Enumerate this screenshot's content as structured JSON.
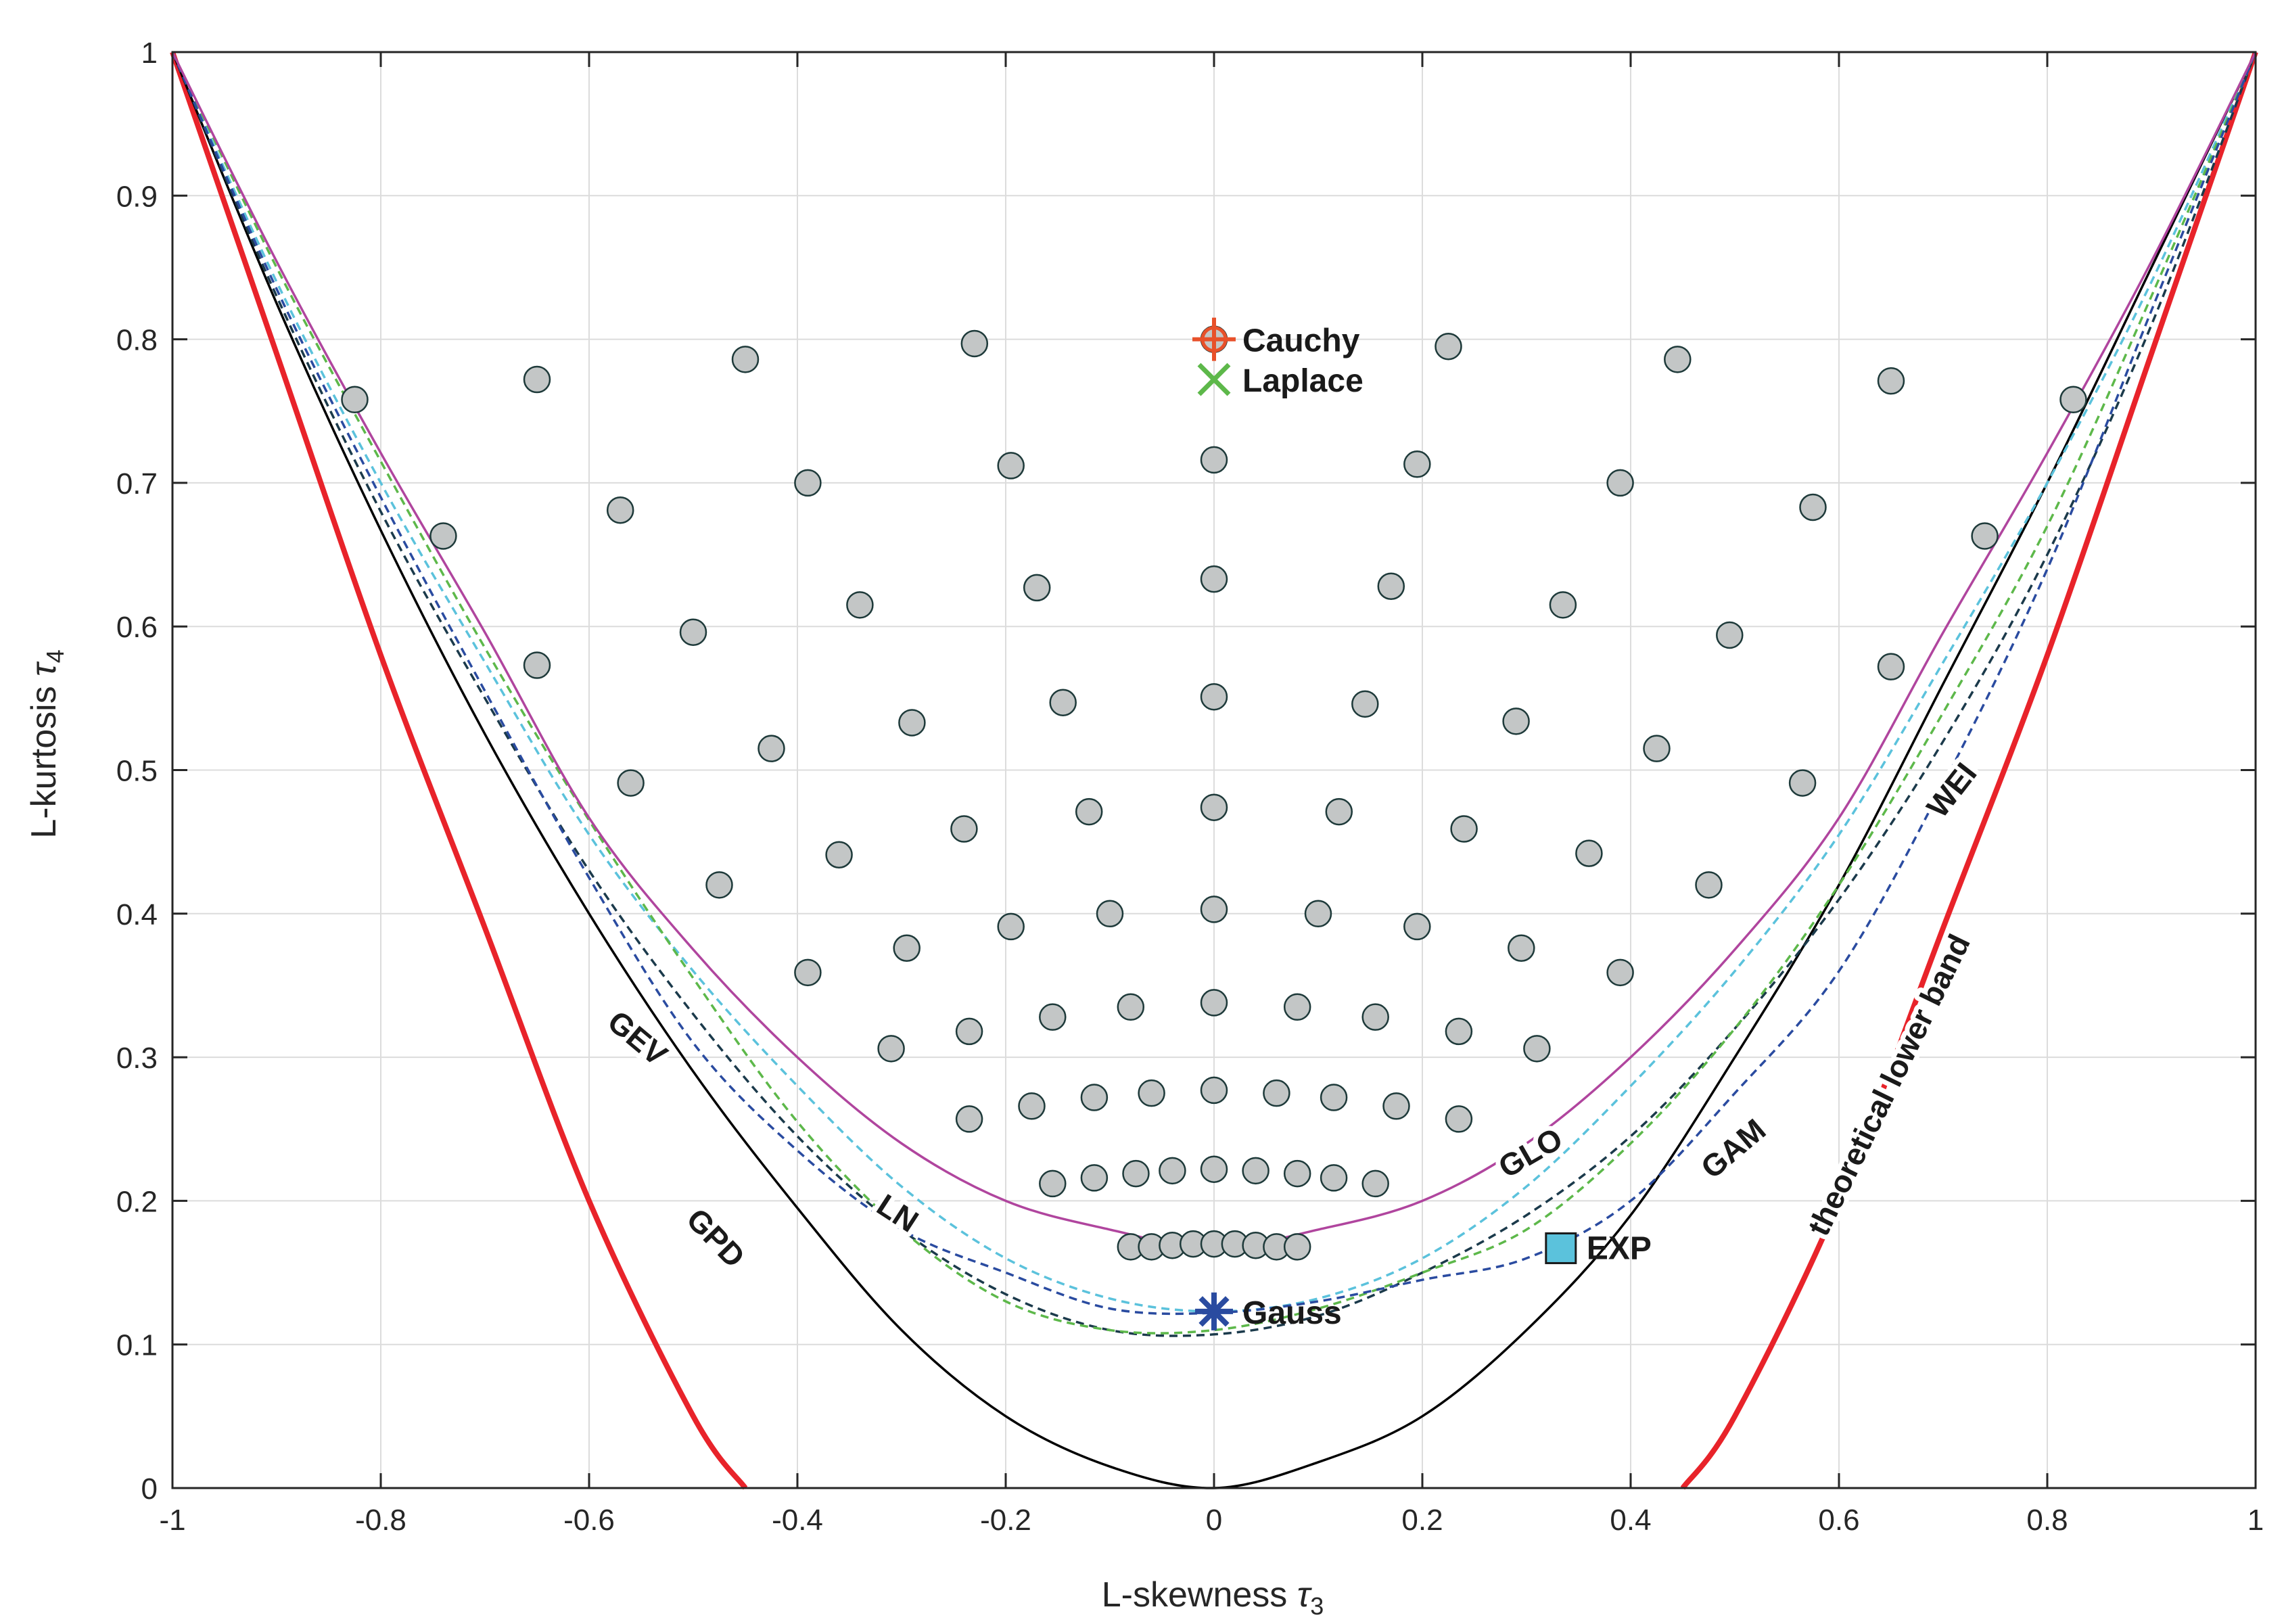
{
  "chart_data": {
    "type": "scatter",
    "title": "",
    "xlabel": "L-skewness",
    "xlabel_symbol": "τ",
    "xlabel_sub": "3",
    "ylabel": "L-kurtosis",
    "ylabel_symbol": "τ",
    "ylabel_sub": "4",
    "xlim": [
      -1,
      1
    ],
    "ylim": [
      0,
      1
    ],
    "grid": true,
    "xticks": [
      -1,
      -0.8,
      -0.6,
      -0.4,
      -0.2,
      0,
      0.2,
      0.4,
      0.6,
      0.8,
      1
    ],
    "xtick_labels": [
      "-1",
      "-0.8",
      "-0.6",
      "-0.4",
      "-0.2",
      "0",
      "0.2",
      "0.4",
      "0.6",
      "0.8",
      "1"
    ],
    "yticks": [
      0,
      0.1,
      0.2,
      0.3,
      0.4,
      0.5,
      0.6,
      0.7,
      0.8,
      0.9,
      1
    ],
    "ytick_labels": [
      "0",
      "0.1",
      "0.2",
      "0.3",
      "0.4",
      "0.5",
      "0.6",
      "0.7",
      "0.8",
      "0.9",
      "1"
    ],
    "curves": [
      {
        "id": "GLO",
        "label": "GLO",
        "color": "#b0459e",
        "style": "solid",
        "x": [
          -1,
          -0.9,
          -0.8,
          -0.7,
          -0.6,
          -0.5,
          -0.4,
          -0.3,
          -0.2,
          -0.1,
          0,
          0.1,
          0.2,
          0.3,
          0.4,
          0.5,
          0.6,
          0.7,
          0.8,
          0.9,
          1
        ],
        "y": [
          1,
          0.8542,
          0.7208,
          0.5958,
          0.4667,
          0.375,
          0.3,
          0.24,
          0.2,
          0.18,
          0.167,
          0.18,
          0.2,
          0.24,
          0.3,
          0.375,
          0.4667,
          0.5958,
          0.7208,
          0.8542,
          1
        ]
      },
      {
        "id": "GPD",
        "label": "GPD",
        "color": "#000000",
        "style": "solid",
        "x": [
          -1,
          -0.9,
          -0.8,
          -0.7,
          -0.6,
          -0.5,
          -0.4,
          -0.3,
          -0.2,
          -0.1,
          0,
          0.1,
          0.2,
          0.3,
          0.4,
          0.5,
          0.6,
          0.7,
          0.8,
          0.9,
          1
        ],
        "y": [
          1,
          0.825,
          0.667,
          0.525,
          0.4,
          0.29,
          0.195,
          0.11,
          0.05,
          0.015,
          0,
          0.018,
          0.05,
          0.11,
          0.19,
          0.3,
          0.42,
          0.56,
          0.7,
          0.85,
          1
        ]
      },
      {
        "id": "GEV",
        "label": "GEV",
        "color": "#1b3a4b",
        "style": "dashed",
        "x": [
          -1,
          -0.9,
          -0.8,
          -0.7,
          -0.6,
          -0.5,
          -0.4,
          -0.3,
          -0.2,
          -0.1,
          0,
          0.1,
          0.2,
          0.3,
          0.4,
          0.5,
          0.6,
          0.7,
          0.8,
          0.9,
          1
        ],
        "y": [
          1,
          0.83,
          0.68,
          0.55,
          0.43,
          0.33,
          0.245,
          0.18,
          0.135,
          0.11,
          0.107,
          0.12,
          0.15,
          0.19,
          0.245,
          0.32,
          0.41,
          0.52,
          0.65,
          0.81,
          1
        ]
      },
      {
        "id": "LN",
        "label": "LN",
        "color": "#5bc2dc",
        "style": "dashed",
        "x": [
          -1,
          -0.9,
          -0.8,
          -0.7,
          -0.6,
          -0.5,
          -0.4,
          -0.3,
          -0.2,
          -0.1,
          0,
          0.1,
          0.2,
          0.3,
          0.4,
          0.5,
          0.6,
          0.7,
          0.8,
          0.9,
          1
        ],
        "y": [
          1,
          0.84,
          0.7,
          0.575,
          0.455,
          0.36,
          0.28,
          0.21,
          0.16,
          0.132,
          0.123,
          0.132,
          0.16,
          0.21,
          0.28,
          0.36,
          0.455,
          0.575,
          0.7,
          0.84,
          1
        ]
      },
      {
        "id": "GAM",
        "label": "GAM",
        "color": "#5db84a",
        "style": "dashed",
        "x": [
          -1,
          -0.9,
          -0.8,
          -0.7,
          -0.6,
          -0.5,
          -0.4,
          -0.3,
          -0.2,
          -0.1,
          0,
          0.1,
          0.2,
          0.3,
          0.4,
          0.5,
          0.6,
          0.7,
          0.8,
          0.9,
          1
        ],
        "y": [
          1,
          0.85,
          0.715,
          0.585,
          0.465,
          0.355,
          0.255,
          0.18,
          0.13,
          0.11,
          0.11,
          0.125,
          0.15,
          0.18,
          0.24,
          0.32,
          0.42,
          0.54,
          0.67,
          0.83,
          1
        ]
      },
      {
        "id": "WEI",
        "label": "WEI",
        "color": "#2a4ba0",
        "style": "dashed",
        "x": [
          -1,
          -0.9,
          -0.8,
          -0.7,
          -0.6,
          -0.5,
          -0.4,
          -0.3,
          -0.2,
          -0.1,
          0,
          0.1,
          0.2,
          0.3,
          0.4,
          0.5,
          0.6,
          0.7,
          0.8,
          0.9,
          1
        ],
        "y": [
          1,
          0.835,
          0.69,
          0.555,
          0.425,
          0.31,
          0.235,
          0.18,
          0.15,
          0.125,
          0.122,
          0.13,
          0.145,
          0.16,
          0.2,
          0.275,
          0.36,
          0.49,
          0.64,
          0.82,
          1
        ]
      },
      {
        "id": "lower-left",
        "label": "",
        "color": "#e8232a",
        "style": "solid",
        "x": [
          -1,
          -0.9,
          -0.8,
          -0.7,
          -0.6,
          -0.5,
          -0.45
        ],
        "y": [
          1,
          0.79,
          0.58,
          0.39,
          0.2,
          0.05,
          0
        ]
      },
      {
        "id": "lower-right",
        "label": "theoretical lower band",
        "color": "#e8232a",
        "style": "solid",
        "x": [
          0.45,
          0.5,
          0.6,
          0.7,
          0.8,
          0.9,
          1
        ],
        "y": [
          0,
          0.05,
          0.2,
          0.39,
          0.58,
          0.79,
          1
        ]
      }
    ],
    "sample_points": {
      "x": [
        -0.825,
        -0.65,
        -0.45,
        -0.23,
        0,
        0.225,
        0.445,
        0.65,
        0.825,
        -0.74,
        -0.57,
        -0.39,
        -0.195,
        0,
        0.195,
        0.39,
        0.575,
        0.74,
        -0.65,
        -0.5,
        -0.34,
        -0.17,
        0,
        0.17,
        0.335,
        0.495,
        0.65,
        -0.56,
        -0.425,
        -0.29,
        -0.145,
        0,
        0.145,
        0.29,
        0.425,
        0.565,
        -0.475,
        -0.36,
        -0.24,
        -0.12,
        0,
        0.12,
        0.24,
        0.36,
        0.475,
        -0.39,
        -0.295,
        -0.195,
        -0.1,
        0,
        0.1,
        0.195,
        0.295,
        0.39,
        -0.31,
        -0.235,
        -0.155,
        -0.08,
        0,
        0.08,
        0.155,
        0.235,
        0.31,
        -0.235,
        -0.175,
        -0.115,
        -0.06,
        0,
        0.06,
        0.115,
        0.175,
        0.235,
        -0.155,
        -0.115,
        -0.075,
        -0.04,
        0,
        0.04,
        0.08,
        0.115,
        0.155,
        -0.08,
        -0.06,
        -0.04,
        -0.02,
        0,
        0.02,
        0.04,
        0.06,
        0.08
      ],
      "y": [
        0.758,
        0.772,
        0.786,
        0.797,
        0.8,
        0.795,
        0.786,
        0.771,
        0.758,
        0.663,
        0.681,
        0.7,
        0.712,
        0.716,
        0.713,
        0.7,
        0.683,
        0.663,
        0.573,
        0.596,
        0.615,
        0.627,
        0.633,
        0.628,
        0.615,
        0.594,
        0.572,
        0.491,
        0.515,
        0.533,
        0.547,
        0.551,
        0.546,
        0.534,
        0.515,
        0.491,
        0.42,
        0.441,
        0.459,
        0.471,
        0.474,
        0.471,
        0.459,
        0.442,
        0.42,
        0.359,
        0.376,
        0.391,
        0.4,
        0.403,
        0.4,
        0.391,
        0.376,
        0.359,
        0.306,
        0.318,
        0.328,
        0.335,
        0.338,
        0.335,
        0.328,
        0.318,
        0.306,
        0.257,
        0.266,
        0.272,
        0.275,
        0.277,
        0.275,
        0.272,
        0.266,
        0.257,
        0.212,
        0.216,
        0.219,
        0.221,
        0.222,
        0.221,
        0.219,
        0.216,
        0.212,
        0.168,
        0.168,
        0.169,
        0.17,
        0.17,
        0.17,
        0.169,
        0.168,
        0.168
      ]
    },
    "named_points": [
      {
        "id": "cauchy",
        "label": "Cauchy",
        "x": 0,
        "y": 0.8,
        "marker": "plus-circle",
        "color": "#e8502a"
      },
      {
        "id": "laplace",
        "label": "Laplace",
        "x": 0,
        "y": 0.772,
        "marker": "x",
        "color": "#5db84a"
      },
      {
        "id": "exp",
        "label": "EXP",
        "x": 0.333,
        "y": 0.167,
        "marker": "square",
        "color": "#5bc2dc"
      },
      {
        "id": "gauss",
        "label": "Gauss",
        "x": 0,
        "y": 0.123,
        "marker": "asterisk",
        "color": "#2a4ba0"
      }
    ]
  }
}
